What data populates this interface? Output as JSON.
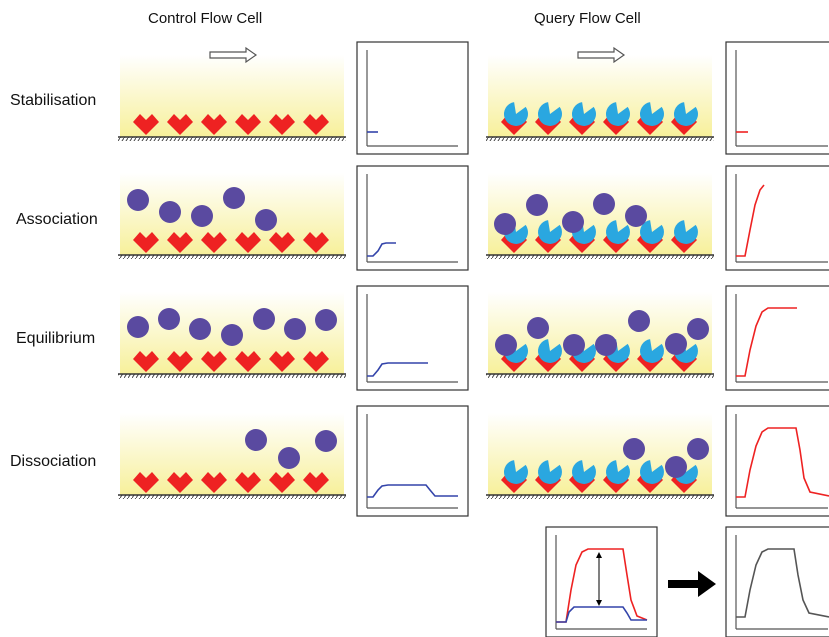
{
  "headers": {
    "control": "Control Flow Cell",
    "query": "Query Flow Cell"
  },
  "rows": [
    {
      "label": "Stabilisation"
    },
    {
      "label": "Association"
    },
    {
      "label": "Equilibrium"
    },
    {
      "label": "Dissociation"
    }
  ],
  "colors": {
    "background_fill_top": "#ffffff",
    "background_fill_bottom": "#f7f09a",
    "ligand": "#ee2222",
    "receptor": "#2aa7e0",
    "analyte": "#5a4aa0",
    "control_trace": "#3344aa",
    "query_trace": "#ee2222",
    "result_trace": "#555555"
  },
  "icons": {
    "flow_direction": "hollow-arrow-right",
    "process_arrow": "bold-arrow-right",
    "measurement_marker": "double-headed-arrow"
  }
}
